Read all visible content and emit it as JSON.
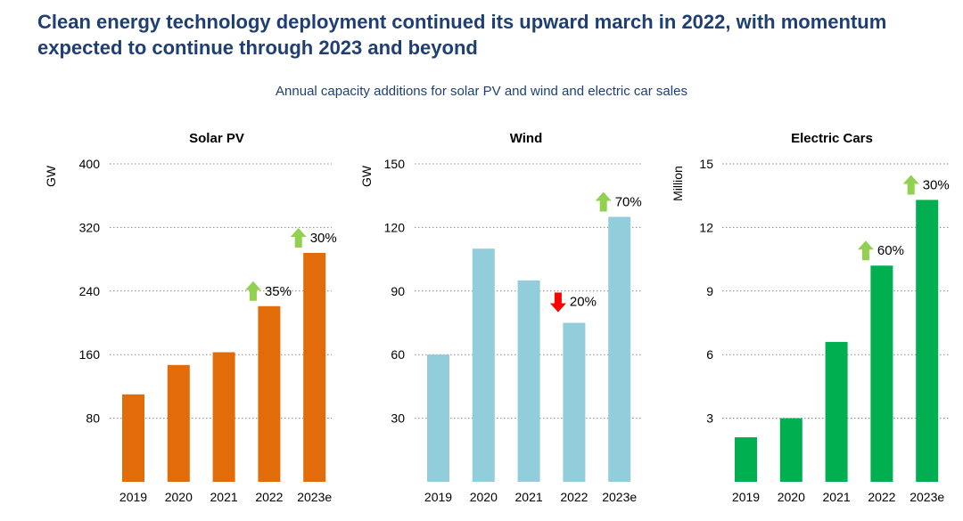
{
  "headline": "Clean energy technology deployment continued its upward march in 2022, with momentum expected to continue through 2023 and beyond",
  "subtitle": "Annual capacity additions for solar PV and wind and electric car sales",
  "chart_data": [
    {
      "type": "bar",
      "title": "Solar PV",
      "ylabel": "GW",
      "xlabel": "",
      "categories": [
        "2019",
        "2020",
        "2021",
        "2022",
        "2023e"
      ],
      "values": [
        110,
        147,
        163,
        221,
        288
      ],
      "ylim": [
        0,
        400
      ],
      "yticks": [
        80,
        160,
        240,
        320,
        400
      ],
      "color": "#e36c0a",
      "grid": true,
      "annotations": [
        {
          "category": "2022",
          "label": "35%",
          "direction": "up"
        },
        {
          "category": "2023e",
          "label": "30%",
          "direction": "up"
        }
      ]
    },
    {
      "type": "bar",
      "title": "Wind",
      "ylabel": "GW",
      "xlabel": "",
      "categories": [
        "2019",
        "2020",
        "2021",
        "2022",
        "2023e"
      ],
      "values": [
        60,
        110,
        95,
        75,
        125
      ],
      "ylim": [
        0,
        150
      ],
      "yticks": [
        30,
        60,
        90,
        120,
        150
      ],
      "color": "#92cddc",
      "grid": true,
      "annotations": [
        {
          "category": "2022",
          "label": "20%",
          "direction": "down"
        },
        {
          "category": "2023e",
          "label": "70%",
          "direction": "up"
        }
      ]
    },
    {
      "type": "bar",
      "title": "Electric Cars",
      "ylabel": "Million",
      "xlabel": "",
      "categories": [
        "2019",
        "2020",
        "2021",
        "2022",
        "2023e"
      ],
      "values": [
        2.1,
        3.0,
        6.6,
        10.2,
        13.3
      ],
      "ylim": [
        0,
        15
      ],
      "yticks": [
        3,
        6,
        9,
        12,
        15
      ],
      "color": "#00b050",
      "grid": true,
      "annotations": [
        {
          "category": "2022",
          "label": "60%",
          "direction": "up"
        },
        {
          "category": "2023e",
          "label": "30%",
          "direction": "up"
        }
      ]
    }
  ],
  "colors": {
    "title": "#1f3f73",
    "grid": "#8c8c8c",
    "arrow_up": "#92d050",
    "arrow_down": "#ff0000",
    "text": "#000000"
  }
}
